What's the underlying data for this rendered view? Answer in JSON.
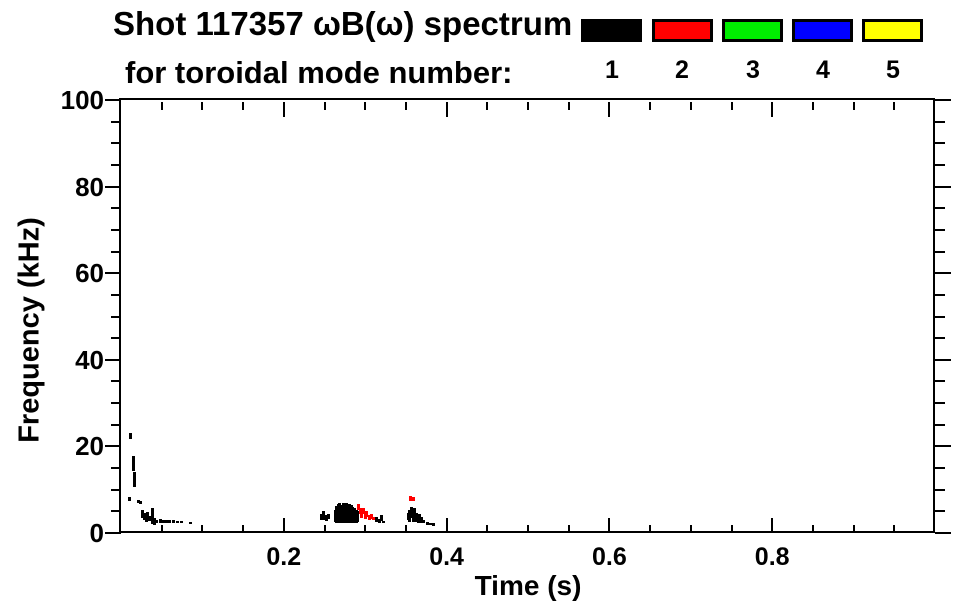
{
  "title_line1": "Shot 117357 ωB(ω) spectrum",
  "title_line2": "for toroidal mode number:",
  "legend": {
    "entries": [
      {
        "label": "1",
        "color": "#000000"
      },
      {
        "label": "2",
        "color": "#ff0000"
      },
      {
        "label": "3",
        "color": "#00ee00"
      },
      {
        "label": "4",
        "color": "#0000ff"
      },
      {
        "label": "5",
        "color": "#ffff00"
      }
    ]
  },
  "chart_data": {
    "type": "scatter",
    "title": "Shot 117357 ωB(ω) spectrum for toroidal mode number: 1 2 3 4 5",
    "xlabel": "Time (s)",
    "ylabel": "Frequency (kHz)",
    "xlim": [
      0,
      1.0
    ],
    "ylim": [
      0,
      100
    ],
    "grid": false,
    "legend_position": "top-right",
    "x_major_ticks": [
      0.2,
      0.4,
      0.6,
      0.8
    ],
    "x_tick_labels": [
      "0.2",
      "0.4",
      "0.6",
      "0.8"
    ],
    "x_minor_step": 0.05,
    "y_major_ticks": [
      0,
      20,
      40,
      60,
      80,
      100
    ],
    "y_tick_labels": [
      "0",
      "20",
      "40",
      "60",
      "80",
      "100"
    ],
    "y_minor_step": 5,
    "series": [
      {
        "name": "toroidal mode n=1",
        "color": "#000000",
        "bars": [
          [
            0.01,
            7.4,
            8.4
          ],
          [
            0.012,
            21.6,
            23.2
          ],
          [
            0.0155,
            14.3,
            17.8
          ],
          [
            0.017,
            10.6,
            14.2
          ],
          [
            0.021,
            6.9,
            7.7
          ],
          [
            0.0235,
            6.8,
            7.3
          ],
          [
            0.027,
            3.5,
            5.3
          ],
          [
            0.029,
            2.9,
            4.7
          ],
          [
            0.031,
            2.6,
            4.3
          ],
          [
            0.033,
            3.1,
            4.9
          ],
          [
            0.035,
            2.7,
            3.9
          ],
          [
            0.039,
            2.0,
            5.7
          ],
          [
            0.041,
            1.8,
            3.4
          ],
          [
            0.044,
            2.3,
            3.1
          ],
          [
            0.048,
            2.4,
            3.2
          ],
          [
            0.052,
            2.4,
            3.1
          ],
          [
            0.056,
            2.4,
            3.1
          ],
          [
            0.06,
            2.4,
            3.0
          ],
          [
            0.064,
            2.3,
            2.9
          ],
          [
            0.069,
            2.2,
            2.8
          ],
          [
            0.074,
            2.2,
            2.7
          ],
          [
            0.085,
            2.0,
            2.6
          ],
          [
            0.246,
            2.9,
            4.4
          ],
          [
            0.249,
            3.1,
            5.0
          ],
          [
            0.252,
            2.7,
            4.1
          ],
          [
            0.255,
            3.2,
            4.3
          ],
          [
            0.263,
            2.6,
            5.4
          ],
          [
            0.265,
            2.4,
            6.2
          ],
          [
            0.267,
            2.3,
            6.8
          ],
          [
            0.269,
            2.3,
            7.0
          ],
          [
            0.271,
            2.4,
            6.5
          ],
          [
            0.273,
            2.3,
            7.0
          ],
          [
            0.275,
            2.3,
            6.7
          ],
          [
            0.277,
            2.4,
            7.0
          ],
          [
            0.279,
            2.3,
            6.3
          ],
          [
            0.281,
            2.4,
            6.8
          ],
          [
            0.283,
            2.3,
            6.5
          ],
          [
            0.285,
            2.4,
            6.1
          ],
          [
            0.287,
            2.3,
            5.7
          ],
          [
            0.289,
            2.4,
            5.3
          ],
          [
            0.291,
            2.5,
            5.0
          ],
          [
            0.314,
            2.6,
            3.8
          ],
          [
            0.317,
            2.4,
            3.2
          ],
          [
            0.32,
            2.8,
            4.2
          ],
          [
            0.323,
            2.2,
            2.8
          ],
          [
            0.353,
            3.0,
            4.6
          ],
          [
            0.355,
            2.6,
            5.2
          ],
          [
            0.357,
            3.4,
            5.9
          ],
          [
            0.359,
            2.6,
            5.0
          ],
          [
            0.361,
            3.0,
            5.7
          ],
          [
            0.363,
            2.6,
            4.6
          ],
          [
            0.365,
            2.4,
            4.1
          ],
          [
            0.367,
            2.7,
            4.5
          ],
          [
            0.369,
            2.3,
            3.6
          ],
          [
            0.372,
            2.2,
            3.0
          ],
          [
            0.376,
            1.9,
            2.6
          ],
          [
            0.38,
            1.8,
            2.4
          ],
          [
            0.384,
            1.6,
            2.2
          ]
        ]
      },
      {
        "name": "toroidal mode n=2",
        "color": "#ff0000",
        "bars": [
          [
            0.292,
            5.2,
            6.6
          ],
          [
            0.294,
            4.3,
            5.7
          ],
          [
            0.296,
            3.5,
            4.9
          ],
          [
            0.298,
            4.4,
            5.8
          ],
          [
            0.3,
            3.3,
            4.5
          ],
          [
            0.302,
            3.7,
            5.0
          ],
          [
            0.305,
            3.0,
            4.1
          ],
          [
            0.308,
            3.3,
            4.3
          ],
          [
            0.31,
            3.0,
            3.8
          ],
          [
            0.356,
            7.5,
            8.6
          ],
          [
            0.359,
            7.3,
            8.4
          ]
        ]
      },
      {
        "name": "toroidal mode n=3",
        "color": "#00ee00",
        "bars": []
      },
      {
        "name": "toroidal mode n=4",
        "color": "#0000ff",
        "bars": []
      },
      {
        "name": "toroidal mode n=5",
        "color": "#ffff00",
        "bars": []
      }
    ]
  }
}
